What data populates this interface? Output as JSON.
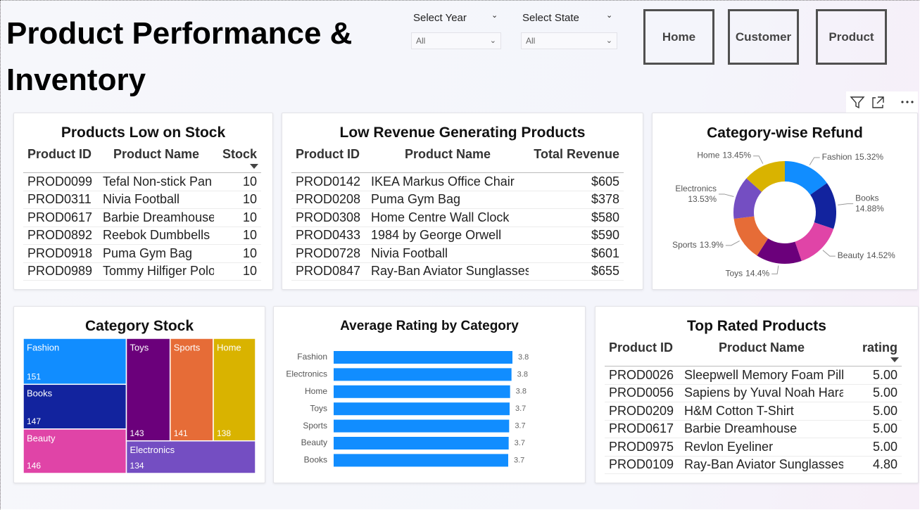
{
  "header": {
    "title": "Product Performance & Inventory"
  },
  "slicers": [
    {
      "label": "Select Year",
      "value": "All"
    },
    {
      "label": "Select State",
      "value": "All"
    }
  ],
  "nav": [
    "Home",
    "Customer",
    "Product"
  ],
  "tables": [
    {
      "title": "Products Low on Stock",
      "columns": [
        "Product ID",
        "Product Name",
        "Stock"
      ],
      "rows": [
        [
          "PROD0099",
          "Tefal Non-stick Pan",
          "10"
        ],
        [
          "PROD0311",
          "Nivia Football",
          "10"
        ],
        [
          "PROD0617",
          "Barbie Dreamhouse",
          "10"
        ],
        [
          "PROD0892",
          "Reebok Dumbbells",
          "10"
        ],
        [
          "PROD0918",
          "Puma Gym Bag",
          "10"
        ],
        [
          "PROD0989",
          "Tommy Hilfiger Polo",
          "10"
        ]
      ]
    },
    {
      "title": "Low Revenue Generating Products",
      "columns": [
        "Product ID",
        "Product Name",
        "Total Revenue"
      ],
      "rows": [
        [
          "PROD0142",
          "IKEA Markus Office Chair",
          "$605"
        ],
        [
          "PROD0208",
          "Puma Gym Bag",
          "$378"
        ],
        [
          "PROD0308",
          "Home Centre Wall Clock",
          "$580"
        ],
        [
          "PROD0433",
          "1984 by George Orwell",
          "$590"
        ],
        [
          "PROD0728",
          "Nivia Football",
          "$601"
        ],
        [
          "PROD0847",
          "Ray-Ban Aviator Sunglasses",
          "$655"
        ]
      ]
    },
    {
      "title": "Top Rated Products",
      "columns": [
        "Product ID",
        "Product Name",
        "rating"
      ],
      "rows": [
        [
          "PROD0026",
          "Sleepwell Memory Foam Pillow",
          "5.00"
        ],
        [
          "PROD0056",
          "Sapiens by Yuval Noah Harari",
          "5.00"
        ],
        [
          "PROD0209",
          "H&M Cotton T-Shirt",
          "5.00"
        ],
        [
          "PROD0617",
          "Barbie Dreamhouse",
          "5.00"
        ],
        [
          "PROD0975",
          "Revlon Eyeliner",
          "5.00"
        ],
        [
          "PROD0109",
          "Ray-Ban Aviator Sunglasses",
          "4.80"
        ]
      ]
    }
  ],
  "chart_data": [
    {
      "type": "pie",
      "title": "Category-wise Refund",
      "categories": [
        "Fashion",
        "Books",
        "Beauty",
        "Toys",
        "Sports",
        "Electronics",
        "Home"
      ],
      "values": [
        15.32,
        14.88,
        14.52,
        14.4,
        13.9,
        13.53,
        13.45
      ],
      "value_labels": [
        "15.32%",
        "14.88%",
        "14.52%",
        "14.4%",
        "13.9%",
        "13.53%",
        "13.45%"
      ],
      "colors": [
        "#118DFF",
        "#12239E",
        "#E044A7",
        "#6B007B",
        "#E66C37",
        "#744EC2",
        "#D9B300"
      ]
    },
    {
      "type": "treemap",
      "title": "Category Stock",
      "categories": [
        "Fashion",
        "Books",
        "Beauty",
        "Toys",
        "Sports",
        "Home",
        "Electronics"
      ],
      "values": [
        151,
        147,
        146,
        143,
        141,
        138,
        134
      ],
      "colors": [
        "#118DFF",
        "#12239E",
        "#E044A7",
        "#6B007B",
        "#E66C37",
        "#D9B300",
        "#744EC2"
      ]
    },
    {
      "type": "bar",
      "title": "Average Rating by Category",
      "categories": [
        "Fashion",
        "Electronics",
        "Home",
        "Toys",
        "Sports",
        "Beauty",
        "Books"
      ],
      "values": [
        3.8,
        3.78,
        3.75,
        3.74,
        3.73,
        3.72,
        3.71
      ],
      "value_labels": [
        "3.8",
        "3.8",
        "3.8",
        "3.7",
        "3.7",
        "3.7",
        "3.7"
      ],
      "color": "#118DFF"
    }
  ]
}
